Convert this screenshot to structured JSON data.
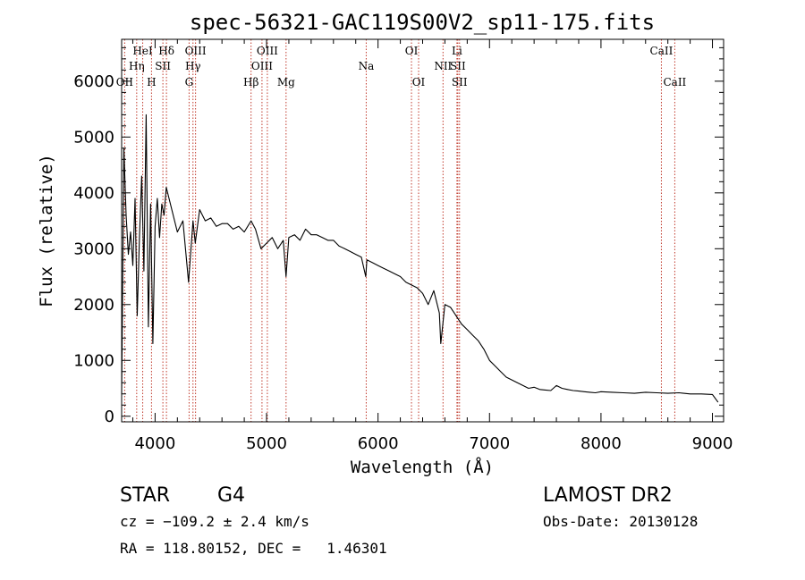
{
  "header": {
    "title": "spec-56321-GAC119S00V2_sp11-175.fits"
  },
  "footer": {
    "object_class": "STAR",
    "subclass": "G4",
    "survey": "LAMOST DR2",
    "cz": "cz = −109.2 ± 2.4 km/s",
    "obs_date": "Obs-Date: 20130128",
    "coords": "RA = 118.80152, DEC =   1.46301"
  },
  "chart_data": {
    "type": "line",
    "title": "spec-56321-GAC119S00V2_sp11-175.fits",
    "xlabel": "Wavelength (Å)",
    "ylabel": "Flux (relative)",
    "xlim": [
      3700,
      9100
    ],
    "ylim": [
      -100,
      6750
    ],
    "xticks": [
      4000,
      5000,
      6000,
      7000,
      8000,
      9000
    ],
    "yticks": [
      0,
      1000,
      2000,
      3000,
      4000,
      5000,
      6000
    ],
    "grid": false,
    "line_color": "#000000",
    "marker_color": "#c0392b",
    "series": [
      {
        "x": [
          3700,
          3720,
          3740,
          3760,
          3780,
          3800,
          3820,
          3840,
          3860,
          3880,
          3900,
          3920,
          3940,
          3960,
          3980,
          4000,
          4020,
          4040,
          4060,
          4080,
          4100,
          4150,
          4200,
          4250,
          4300,
          4340,
          4360,
          4400,
          4450,
          4500,
          4550,
          4600,
          4650,
          4700,
          4750,
          4800,
          4861,
          4900,
          4950,
          5000,
          5050,
          5100,
          5150,
          5175,
          5200,
          5250,
          5300,
          5350,
          5400,
          5450,
          5500,
          5550,
          5600,
          5650,
          5700,
          5750,
          5800,
          5850,
          5890,
          5900,
          5950,
          6000,
          6050,
          6100,
          6150,
          6200,
          6250,
          6300,
          6350,
          6400,
          6450,
          6500,
          6550,
          6563,
          6600,
          6650,
          6700,
          6750,
          6800,
          6850,
          6900,
          6950,
          7000,
          7050,
          7100,
          7150,
          7200,
          7250,
          7300,
          7350,
          7400,
          7450,
          7500,
          7550,
          7600,
          7650,
          7700,
          7750,
          7800,
          7850,
          7900,
          7950,
          8000,
          8100,
          8200,
          8300,
          8400,
          8500,
          8600,
          8700,
          8800,
          8900,
          9000,
          9050
        ],
        "y": [
          400,
          4800,
          3600,
          2900,
          3300,
          2700,
          3900,
          1800,
          3200,
          4300,
          2600,
          5400,
          1600,
          3800,
          1300,
          3400,
          3900,
          3200,
          3800,
          3600,
          4100,
          3700,
          3300,
          3500,
          2400,
          3500,
          3100,
          3700,
          3500,
          3550,
          3400,
          3450,
          3450,
          3350,
          3400,
          3300,
          3500,
          3350,
          3000,
          3100,
          3200,
          3000,
          3150,
          2500,
          3200,
          3250,
          3150,
          3350,
          3250,
          3250,
          3200,
          3150,
          3150,
          3050,
          3000,
          2950,
          2900,
          2850,
          2500,
          2800,
          2750,
          2700,
          2650,
          2600,
          2550,
          2500,
          2400,
          2350,
          2300,
          2200,
          2000,
          2250,
          1850,
          1300,
          2000,
          1950,
          1800,
          1650,
          1550,
          1450,
          1350,
          1200,
          1000,
          900,
          800,
          700,
          650,
          600,
          550,
          500,
          520,
          480,
          470,
          460,
          550,
          500,
          480,
          460,
          450,
          440,
          430,
          420,
          440,
          430,
          420,
          410,
          430,
          420,
          410,
          420,
          400,
          400,
          390,
          250
        ]
      }
    ],
    "spectral_lines": [
      {
        "label": "OII",
        "wavelength": 3727,
        "row": 3
      },
      {
        "label": "Hη",
        "wavelength": 3835,
        "row": 2
      },
      {
        "label": "HeI",
        "wavelength": 3889,
        "row": 1
      },
      {
        "label": "H",
        "wavelength": 3968,
        "row": 3
      },
      {
        "label": "SII",
        "wavelength": 4070,
        "row": 2
      },
      {
        "label": "Hδ",
        "wavelength": 4102,
        "row": 1
      },
      {
        "label": "G",
        "wavelength": 4305,
        "row": 3
      },
      {
        "label": "Hγ",
        "wavelength": 4340,
        "row": 2
      },
      {
        "label": "OIII",
        "wavelength": 4363,
        "row": 1
      },
      {
        "label": "Hβ",
        "wavelength": 4861,
        "row": 3
      },
      {
        "label": "OIII",
        "wavelength": 4959,
        "row": 2
      },
      {
        "label": "OIII",
        "wavelength": 5007,
        "row": 1
      },
      {
        "label": "Mg",
        "wavelength": 5175,
        "row": 3
      },
      {
        "label": "Na",
        "wavelength": 5894,
        "row": 2
      },
      {
        "label": "OI",
        "wavelength": 6300,
        "row": 1
      },
      {
        "label": "OI",
        "wavelength": 6364,
        "row": 3
      },
      {
        "label": "NII",
        "wavelength": 6583,
        "row": 2
      },
      {
        "label": "Li",
        "wavelength": 6708,
        "row": 1
      },
      {
        "label": "SII",
        "wavelength": 6716,
        "row": 2
      },
      {
        "label": "SII",
        "wavelength": 6731,
        "row": 3
      },
      {
        "label": "CaII",
        "wavelength": 8542,
        "row": 1
      },
      {
        "label": "CaII",
        "wavelength": 8662,
        "row": 3
      }
    ]
  }
}
